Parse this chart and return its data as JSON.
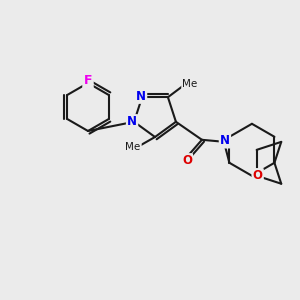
{
  "bg_color": "#ebebeb",
  "bond_color": "#1a1a1a",
  "bond_lw": 1.5,
  "atom_colors": {
    "N": "#0000ee",
    "O": "#dd0000",
    "F": "#ee00ee",
    "C": "#1a1a1a"
  },
  "font_size": 8.5,
  "bold_N": true
}
